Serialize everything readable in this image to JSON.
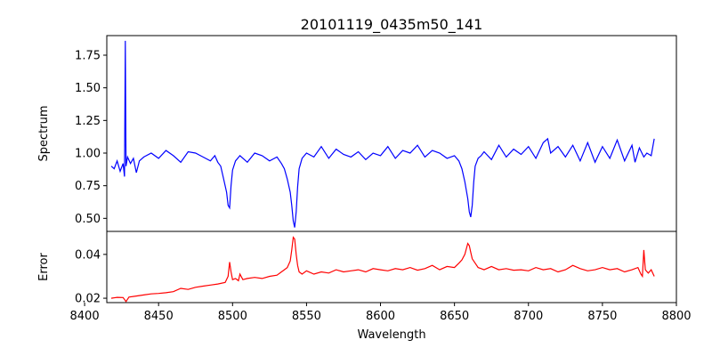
{
  "title": "20101119_0435m50_141",
  "chart_data": [
    {
      "type": "line",
      "panel": "top",
      "ylabel": "Spectrum",
      "xlim": [
        8415,
        8800
      ],
      "ylim": [
        0.4,
        1.9
      ],
      "yticks": [
        0.5,
        0.75,
        1.0,
        1.25,
        1.5,
        1.75
      ],
      "ytick_labels": [
        "0.50",
        "0.75",
        "1.00",
        "1.25",
        "1.50",
        "1.75"
      ],
      "color": "#0000ff",
      "series": [
        {
          "x": [
            8418,
            8420,
            8422,
            8424,
            8426,
            8427,
            8427.5,
            8428,
            8429,
            8431,
            8433,
            8435,
            8437,
            8440,
            8445,
            8450,
            8455,
            8460,
            8465,
            8470,
            8475,
            8480,
            8485,
            8488,
            8490,
            8492,
            8494,
            8496,
            8497,
            8498,
            8499,
            8500,
            8502,
            8505,
            8510,
            8515,
            8520,
            8525,
            8530,
            8533,
            8535,
            8537,
            8539,
            8540,
            8541,
            8542,
            8543,
            8544,
            8545,
            8547,
            8550,
            8555,
            8560,
            8565,
            8570,
            8575,
            8580,
            8585,
            8590,
            8595,
            8600,
            8605,
            8610,
            8615,
            8620,
            8625,
            8630,
            8635,
            8640,
            8645,
            8650,
            8653,
            8655,
            8657,
            8659,
            8660,
            8661,
            8662,
            8663,
            8664,
            8666,
            8668,
            8670,
            8675,
            8680,
            8685,
            8690,
            8695,
            8700,
            8705,
            8710,
            8713,
            8715,
            8720,
            8725,
            8730,
            8735,
            8740,
            8745,
            8750,
            8755,
            8760,
            8765,
            8770,
            8772,
            8775,
            8778,
            8780,
            8783,
            8785
          ],
          "y": [
            0.9,
            0.88,
            0.94,
            0.86,
            0.92,
            0.82,
            1.86,
            0.9,
            0.97,
            0.92,
            0.96,
            0.85,
            0.94,
            0.97,
            1.0,
            0.96,
            1.02,
            0.98,
            0.93,
            1.01,
            1.0,
            0.97,
            0.94,
            0.98,
            0.93,
            0.9,
            0.8,
            0.7,
            0.6,
            0.58,
            0.75,
            0.87,
            0.94,
            0.98,
            0.93,
            1.0,
            0.98,
            0.94,
            0.97,
            0.92,
            0.88,
            0.8,
            0.7,
            0.6,
            0.48,
            0.43,
            0.55,
            0.74,
            0.88,
            0.96,
            1.0,
            0.97,
            1.05,
            0.96,
            1.03,
            0.99,
            0.97,
            1.01,
            0.95,
            1.0,
            0.98,
            1.05,
            0.96,
            1.02,
            1.0,
            1.06,
            0.97,
            1.02,
            1.0,
            0.96,
            0.98,
            0.94,
            0.88,
            0.78,
            0.65,
            0.55,
            0.51,
            0.6,
            0.78,
            0.9,
            0.96,
            0.98,
            1.01,
            0.95,
            1.06,
            0.97,
            1.03,
            0.99,
            1.05,
            0.96,
            1.08,
            1.11,
            1.0,
            1.05,
            0.97,
            1.06,
            0.94,
            1.08,
            0.93,
            1.05,
            0.96,
            1.1,
            0.94,
            1.06,
            0.93,
            1.04,
            0.97,
            1.0,
            0.98,
            1.11
          ]
        }
      ]
    },
    {
      "type": "line",
      "panel": "bottom",
      "xlabel": "Wavelength",
      "ylabel": "Error",
      "xlim": [
        8415,
        8800
      ],
      "ylim": [
        0.018,
        0.0505
      ],
      "xticks": [
        8400,
        8450,
        8500,
        8550,
        8600,
        8650,
        8700,
        8750,
        8800
      ],
      "xtick_labels": [
        "8400",
        "8450",
        "8500",
        "8550",
        "8600",
        "8650",
        "8700",
        "8750",
        "8800"
      ],
      "yticks": [
        0.02,
        0.04
      ],
      "ytick_labels": [
        "0.02",
        "0.04"
      ],
      "color": "#ff0000",
      "series": [
        {
          "x": [
            8418,
            8422,
            8426,
            8428,
            8430,
            8435,
            8440,
            8445,
            8450,
            8455,
            8460,
            8465,
            8470,
            8475,
            8480,
            8485,
            8490,
            8495,
            8497,
            8498,
            8499,
            8500,
            8502,
            8504,
            8505,
            8507,
            8510,
            8515,
            8520,
            8525,
            8530,
            8533,
            8535,
            8537,
            8539,
            8540,
            8541,
            8542,
            8543,
            8544,
            8545,
            8547,
            8550,
            8555,
            8560,
            8565,
            8570,
            8575,
            8580,
            8585,
            8590,
            8595,
            8600,
            8605,
            8610,
            8615,
            8620,
            8625,
            8630,
            8635,
            8640,
            8645,
            8650,
            8653,
            8655,
            8657,
            8659,
            8660,
            8661,
            8662,
            8664,
            8666,
            8668,
            8670,
            8675,
            8680,
            8685,
            8690,
            8695,
            8700,
            8705,
            8710,
            8715,
            8720,
            8725,
            8730,
            8735,
            8740,
            8745,
            8750,
            8755,
            8760,
            8765,
            8770,
            8774,
            8776,
            8777,
            8778,
            8779,
            8781,
            8783,
            8785
          ],
          "y": [
            0.02,
            0.0204,
            0.0203,
            0.0185,
            0.0205,
            0.021,
            0.0215,
            0.022,
            0.0222,
            0.0225,
            0.023,
            0.0245,
            0.024,
            0.025,
            0.0255,
            0.026,
            0.0265,
            0.0272,
            0.03,
            0.0365,
            0.032,
            0.0285,
            0.029,
            0.028,
            0.031,
            0.0285,
            0.029,
            0.0295,
            0.029,
            0.03,
            0.0305,
            0.032,
            0.033,
            0.034,
            0.037,
            0.042,
            0.0478,
            0.047,
            0.04,
            0.035,
            0.032,
            0.031,
            0.0325,
            0.031,
            0.032,
            0.0315,
            0.033,
            0.032,
            0.0325,
            0.033,
            0.032,
            0.0335,
            0.033,
            0.0325,
            0.0335,
            0.033,
            0.034,
            0.0328,
            0.0335,
            0.035,
            0.033,
            0.0345,
            0.034,
            0.036,
            0.0375,
            0.04,
            0.045,
            0.044,
            0.041,
            0.038,
            0.036,
            0.034,
            0.0335,
            0.033,
            0.0345,
            0.033,
            0.0335,
            0.0328,
            0.033,
            0.0325,
            0.034,
            0.033,
            0.0335,
            0.032,
            0.033,
            0.035,
            0.0335,
            0.0325,
            0.033,
            0.034,
            0.033,
            0.0335,
            0.032,
            0.033,
            0.034,
            0.031,
            0.03,
            0.042,
            0.033,
            0.0315,
            0.033,
            0.03
          ]
        }
      ]
    }
  ]
}
